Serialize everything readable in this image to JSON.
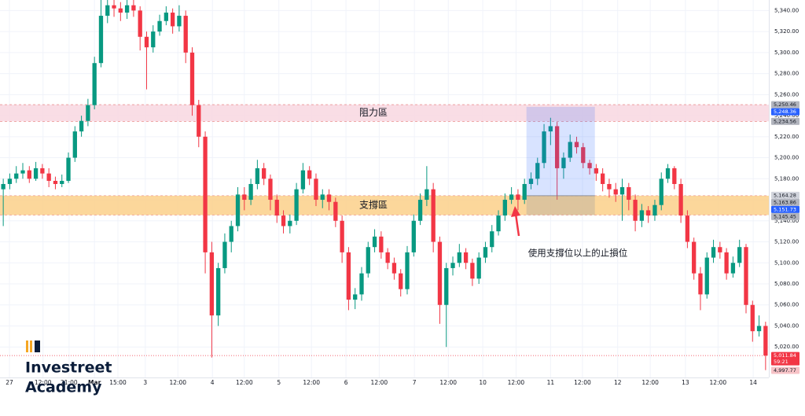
{
  "chart_data": {
    "type": "candlestick",
    "up_color": "#089981",
    "down_color": "#f23645",
    "grid": true,
    "xlim": [
      -0.5,
      117.5
    ],
    "ylim": [
      4991,
      5350
    ],
    "x": [
      0,
      1,
      2,
      3,
      4,
      5,
      6,
      7,
      8,
      9,
      10,
      11,
      12,
      13,
      14,
      15,
      16,
      17,
      18,
      19,
      20,
      21,
      22,
      23,
      24,
      25,
      26,
      27,
      28,
      29,
      30,
      31,
      32,
      33,
      34,
      35,
      36,
      37,
      38,
      39,
      40,
      41,
      42,
      43,
      44,
      45,
      46,
      47,
      48,
      49,
      50,
      51,
      52,
      53,
      54,
      55,
      56,
      57,
      58,
      59,
      60,
      61,
      62,
      63,
      64,
      65,
      66,
      67,
      68,
      69,
      70,
      71,
      72,
      73,
      74,
      75,
      76,
      77,
      78,
      79,
      80,
      81,
      82,
      83,
      84,
      85,
      86,
      87,
      88,
      89,
      90,
      91,
      92,
      93,
      94,
      95,
      96,
      97,
      98,
      99,
      100,
      101,
      102,
      103,
      104,
      105,
      106,
      107,
      108,
      109,
      110,
      111,
      112,
      113,
      114,
      115,
      116,
      117
    ],
    "ohlc": [
      [
        5170,
        5180,
        5135,
        5175
      ],
      [
        5175,
        5185,
        5170,
        5180
      ],
      [
        5180,
        5192,
        5176,
        5185
      ],
      [
        5185,
        5195,
        5180,
        5188
      ],
      [
        5188,
        5192,
        5176,
        5180
      ],
      [
        5180,
        5196,
        5178,
        5190
      ],
      [
        5190,
        5194,
        5180,
        5185
      ],
      [
        5185,
        5190,
        5172,
        5178
      ],
      [
        5178,
        5182,
        5170,
        5175
      ],
      [
        5175,
        5184,
        5172,
        5178
      ],
      [
        5178,
        5205,
        5176,
        5200
      ],
      [
        5200,
        5230,
        5196,
        5225
      ],
      [
        5225,
        5240,
        5220,
        5235
      ],
      [
        5235,
        5256,
        5230,
        5250
      ],
      [
        5250,
        5296,
        5246,
        5290
      ],
      [
        5290,
        5350,
        5286,
        5335
      ],
      [
        5335,
        5350,
        5328,
        5345
      ],
      [
        5345,
        5350,
        5334,
        5342
      ],
      [
        5342,
        5348,
        5330,
        5338
      ],
      [
        5338,
        5350,
        5332,
        5345
      ],
      [
        5345,
        5350,
        5334,
        5340
      ],
      [
        5340,
        5344,
        5302,
        5315
      ],
      [
        5315,
        5320,
        5265,
        5305
      ],
      [
        5305,
        5326,
        5300,
        5320
      ],
      [
        5320,
        5336,
        5316,
        5330
      ],
      [
        5330,
        5344,
        5326,
        5338
      ],
      [
        5338,
        5342,
        5318,
        5325
      ],
      [
        5325,
        5345,
        5320,
        5335
      ],
      [
        5335,
        5340,
        5290,
        5300
      ],
      [
        5300,
        5305,
        5240,
        5250
      ],
      [
        5250,
        5255,
        5210,
        5220
      ],
      [
        5220,
        5225,
        5090,
        5110
      ],
      [
        5110,
        5120,
        5010,
        5050
      ],
      [
        5050,
        5100,
        5040,
        5095
      ],
      [
        5095,
        5128,
        5090,
        5120
      ],
      [
        5120,
        5140,
        5110,
        5135
      ],
      [
        5135,
        5172,
        5130,
        5165
      ],
      [
        5165,
        5172,
        5150,
        5160
      ],
      [
        5160,
        5180,
        5155,
        5175
      ],
      [
        5175,
        5198,
        5170,
        5190
      ],
      [
        5190,
        5195,
        5174,
        5180
      ],
      [
        5180,
        5184,
        5150,
        5160
      ],
      [
        5160,
        5165,
        5138,
        5145
      ],
      [
        5145,
        5150,
        5128,
        5135
      ],
      [
        5135,
        5146,
        5128,
        5140
      ],
      [
        5140,
        5176,
        5136,
        5170
      ],
      [
        5170,
        5195,
        5166,
        5188
      ],
      [
        5188,
        5192,
        5174,
        5180
      ],
      [
        5180,
        5185,
        5154,
        5160
      ],
      [
        5160,
        5170,
        5152,
        5165
      ],
      [
        5165,
        5170,
        5150,
        5158
      ],
      [
        5158,
        5162,
        5134,
        5140
      ],
      [
        5140,
        5145,
        5100,
        5110
      ],
      [
        5110,
        5115,
        5055,
        5065
      ],
      [
        5065,
        5076,
        5056,
        5070
      ],
      [
        5070,
        5096,
        5064,
        5090
      ],
      [
        5090,
        5120,
        5086,
        5115
      ],
      [
        5115,
        5132,
        5110,
        5125
      ],
      [
        5125,
        5130,
        5104,
        5110
      ],
      [
        5110,
        5114,
        5094,
        5100
      ],
      [
        5100,
        5105,
        5084,
        5090
      ],
      [
        5090,
        5094,
        5068,
        5075
      ],
      [
        5075,
        5116,
        5070,
        5110
      ],
      [
        5110,
        5146,
        5106,
        5140
      ],
      [
        5140,
        5166,
        5136,
        5160
      ],
      [
        5160,
        5192,
        5154,
        5170
      ],
      [
        5170,
        5176,
        5110,
        5120
      ],
      [
        5120,
        5125,
        5042,
        5060
      ],
      [
        5060,
        5100,
        5020,
        5095
      ],
      [
        5095,
        5106,
        5088,
        5100
      ],
      [
        5100,
        5118,
        5096,
        5110
      ],
      [
        5110,
        5114,
        5094,
        5100
      ],
      [
        5100,
        5104,
        5078,
        5085
      ],
      [
        5085,
        5110,
        5080,
        5105
      ],
      [
        5105,
        5120,
        5100,
        5115
      ],
      [
        5115,
        5136,
        5110,
        5130
      ],
      [
        5130,
        5150,
        5126,
        5145
      ],
      [
        5145,
        5166,
        5140,
        5160
      ],
      [
        5160,
        5172,
        5156,
        5165
      ],
      [
        5165,
        5170,
        5150,
        5160
      ],
      [
        5160,
        5180,
        5156,
        5175
      ],
      [
        5175,
        5186,
        5170,
        5180
      ],
      [
        5180,
        5200,
        5174,
        5195
      ],
      [
        5195,
        5232,
        5190,
        5225
      ],
      [
        5225,
        5238,
        5212,
        5230
      ],
      [
        5230,
        5234,
        5160,
        5190
      ],
      [
        5190,
        5205,
        5180,
        5200
      ],
      [
        5200,
        5222,
        5196,
        5215
      ],
      [
        5215,
        5220,
        5204,
        5210
      ],
      [
        5210,
        5214,
        5190,
        5195
      ],
      [
        5195,
        5198,
        5184,
        5190
      ],
      [
        5190,
        5194,
        5178,
        5185
      ],
      [
        5185,
        5190,
        5168,
        5175
      ],
      [
        5175,
        5180,
        5162,
        5170
      ],
      [
        5170,
        5176,
        5158,
        5165
      ],
      [
        5165,
        5180,
        5140,
        5172
      ],
      [
        5172,
        5176,
        5150,
        5160
      ],
      [
        5160,
        5165,
        5130,
        5140
      ],
      [
        5140,
        5156,
        5134,
        5150
      ],
      [
        5150,
        5154,
        5138,
        5145
      ],
      [
        5145,
        5160,
        5140,
        5155
      ],
      [
        5155,
        5186,
        5150,
        5180
      ],
      [
        5180,
        5194,
        5176,
        5190
      ],
      [
        5190,
        5192,
        5170,
        5175
      ],
      [
        5175,
        5180,
        5138,
        5145
      ],
      [
        5145,
        5150,
        5114,
        5120
      ],
      [
        5120,
        5124,
        5084,
        5090
      ],
      [
        5090,
        5096,
        5055,
        5070
      ],
      [
        5070,
        5110,
        5066,
        5105
      ],
      [
        5105,
        5122,
        5100,
        5115
      ],
      [
        5115,
        5120,
        5104,
        5110
      ],
      [
        5110,
        5114,
        5084,
        5090
      ],
      [
        5090,
        5106,
        5086,
        5100
      ],
      [
        5100,
        5122,
        5096,
        5115
      ],
      [
        5115,
        5118,
        5052,
        5060
      ],
      [
        5060,
        5064,
        5025,
        5035
      ],
      [
        5035,
        5050,
        5030,
        5040
      ],
      [
        5040,
        5044,
        4998,
        5011.84
      ]
    ],
    "yticks": [
      {
        "value": 5020,
        "label": "5,020.00"
      },
      {
        "value": 5040,
        "label": "5,040.00"
      },
      {
        "value": 5060,
        "label": "5,060.00"
      },
      {
        "value": 5080,
        "label": "5,080.00"
      },
      {
        "value": 5100,
        "label": "5,100.00"
      },
      {
        "value": 5120,
        "label": "5,120.00"
      },
      {
        "value": 5140,
        "label": "5,140.00"
      },
      {
        "value": 5160,
        "label": "5,160.00"
      },
      {
        "value": 5180,
        "label": "5,180.00"
      },
      {
        "value": 5200,
        "label": "5,200.00"
      },
      {
        "value": 5220,
        "label": "5,220.00"
      },
      {
        "value": 5240,
        "label": "5,240.00"
      },
      {
        "value": 5260,
        "label": "5,260.00"
      },
      {
        "value": 5280,
        "label": "5,280.00"
      },
      {
        "value": 5300,
        "label": "5,300.00"
      },
      {
        "value": 5320,
        "label": "5,320.00"
      },
      {
        "value": 5340,
        "label": "5,340.00"
      }
    ],
    "xticks": [
      {
        "value": 0.95,
        "label": "27"
      },
      {
        "value": 6.1,
        "label": "12:00"
      },
      {
        "value": 10.1,
        "label": "21:00"
      },
      {
        "value": 14.0,
        "label": "Mar"
      },
      {
        "value": 17.6,
        "label": "15:00"
      },
      {
        "value": 21.8,
        "label": "3"
      },
      {
        "value": 26.8,
        "label": "12:00"
      },
      {
        "value": 32.1,
        "label": "4"
      },
      {
        "value": 37.0,
        "label": "12:00"
      },
      {
        "value": 42.3,
        "label": "5"
      },
      {
        "value": 47.3,
        "label": "12:00"
      },
      {
        "value": 52.6,
        "label": "6"
      },
      {
        "value": 57.7,
        "label": "12:00"
      },
      {
        "value": 63.1,
        "label": "7"
      },
      {
        "value": 68.3,
        "label": "12:00"
      },
      {
        "value": 73.6,
        "label": "10"
      },
      {
        "value": 78.7,
        "label": "12:00"
      },
      {
        "value": 84.0,
        "label": "11"
      },
      {
        "value": 88.9,
        "label": "12:00"
      },
      {
        "value": 94.3,
        "label": "12"
      },
      {
        "value": 99.3,
        "label": "12:00"
      },
      {
        "value": 104.7,
        "label": "13"
      },
      {
        "value": 109.7,
        "label": "12:00"
      },
      {
        "value": 115.1,
        "label": "14"
      }
    ],
    "zones": [
      {
        "label": "阻力區",
        "low": 5234.56,
        "high": 5250.46,
        "color": "#f8d7e0"
      },
      {
        "label": "支撐區",
        "low": 5145.45,
        "high": 5163.86,
        "color": "#fbd08a"
      }
    ],
    "position": {
      "x": [
        80.3,
        90.8
      ],
      "target": 5248.36,
      "entry": 5163.86,
      "stop": 5145.45
    },
    "annotation": "使用支撐位以上的止損位",
    "price_tags": [
      {
        "value": 5250.46,
        "label": "5,250.46",
        "color": "#b2b5be"
      },
      {
        "value": 5248.36,
        "label": "5,248.36",
        "color": "#2962ff"
      },
      {
        "value": 5234.56,
        "label": "5,234.56",
        "color": "#b2b5be"
      },
      {
        "value": 5164.28,
        "label": "5,164.28",
        "color": "#d1d4dc"
      },
      {
        "value": 5163.86,
        "label": "5,163.86",
        "color": "#b2b5be"
      },
      {
        "value": 5151.73,
        "label": "5,151.73",
        "color": "#2962ff"
      },
      {
        "value": 5145.45,
        "label": "5,145.45",
        "color": "#b2b5be"
      },
      {
        "value": 5011.84,
        "label": "5,011.84",
        "color": "#f23645",
        "countdown": "59:21"
      },
      {
        "value": 4997.77,
        "label": "4,997.77",
        "color": "#f7c3c7"
      }
    ],
    "logo": [
      "Investreet",
      "Academy"
    ]
  }
}
